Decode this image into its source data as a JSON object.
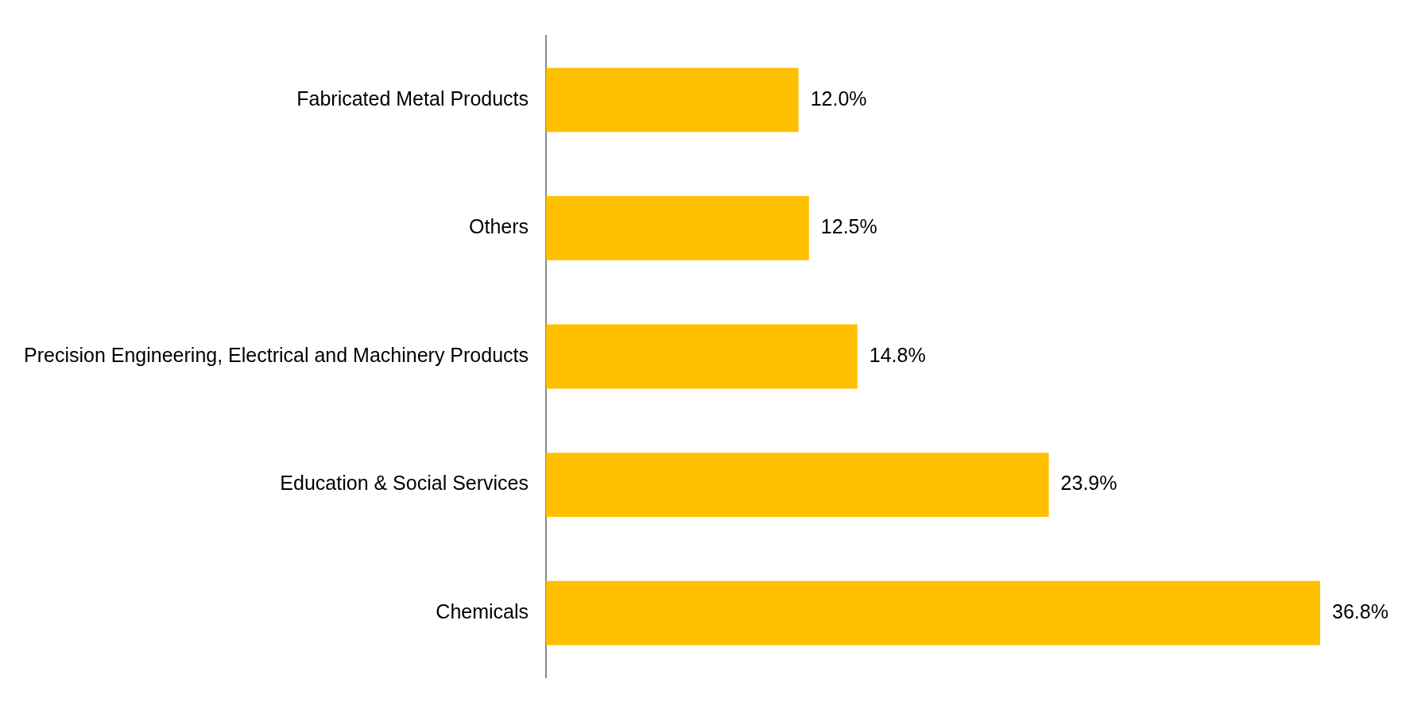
{
  "chart_data": {
    "type": "bar",
    "orientation": "horizontal",
    "categories": [
      "Fabricated Metal Products",
      "Others",
      "Precision Engineering, Electrical and Machinery Products",
      "Education & Social Services",
      "Chemicals"
    ],
    "values": [
      12.0,
      12.5,
      14.8,
      23.9,
      36.8
    ],
    "value_labels": [
      "12.0%",
      "12.5%",
      "14.8%",
      "23.9%",
      "36.8%"
    ],
    "color": "#ffc000",
    "legend": false
  }
}
